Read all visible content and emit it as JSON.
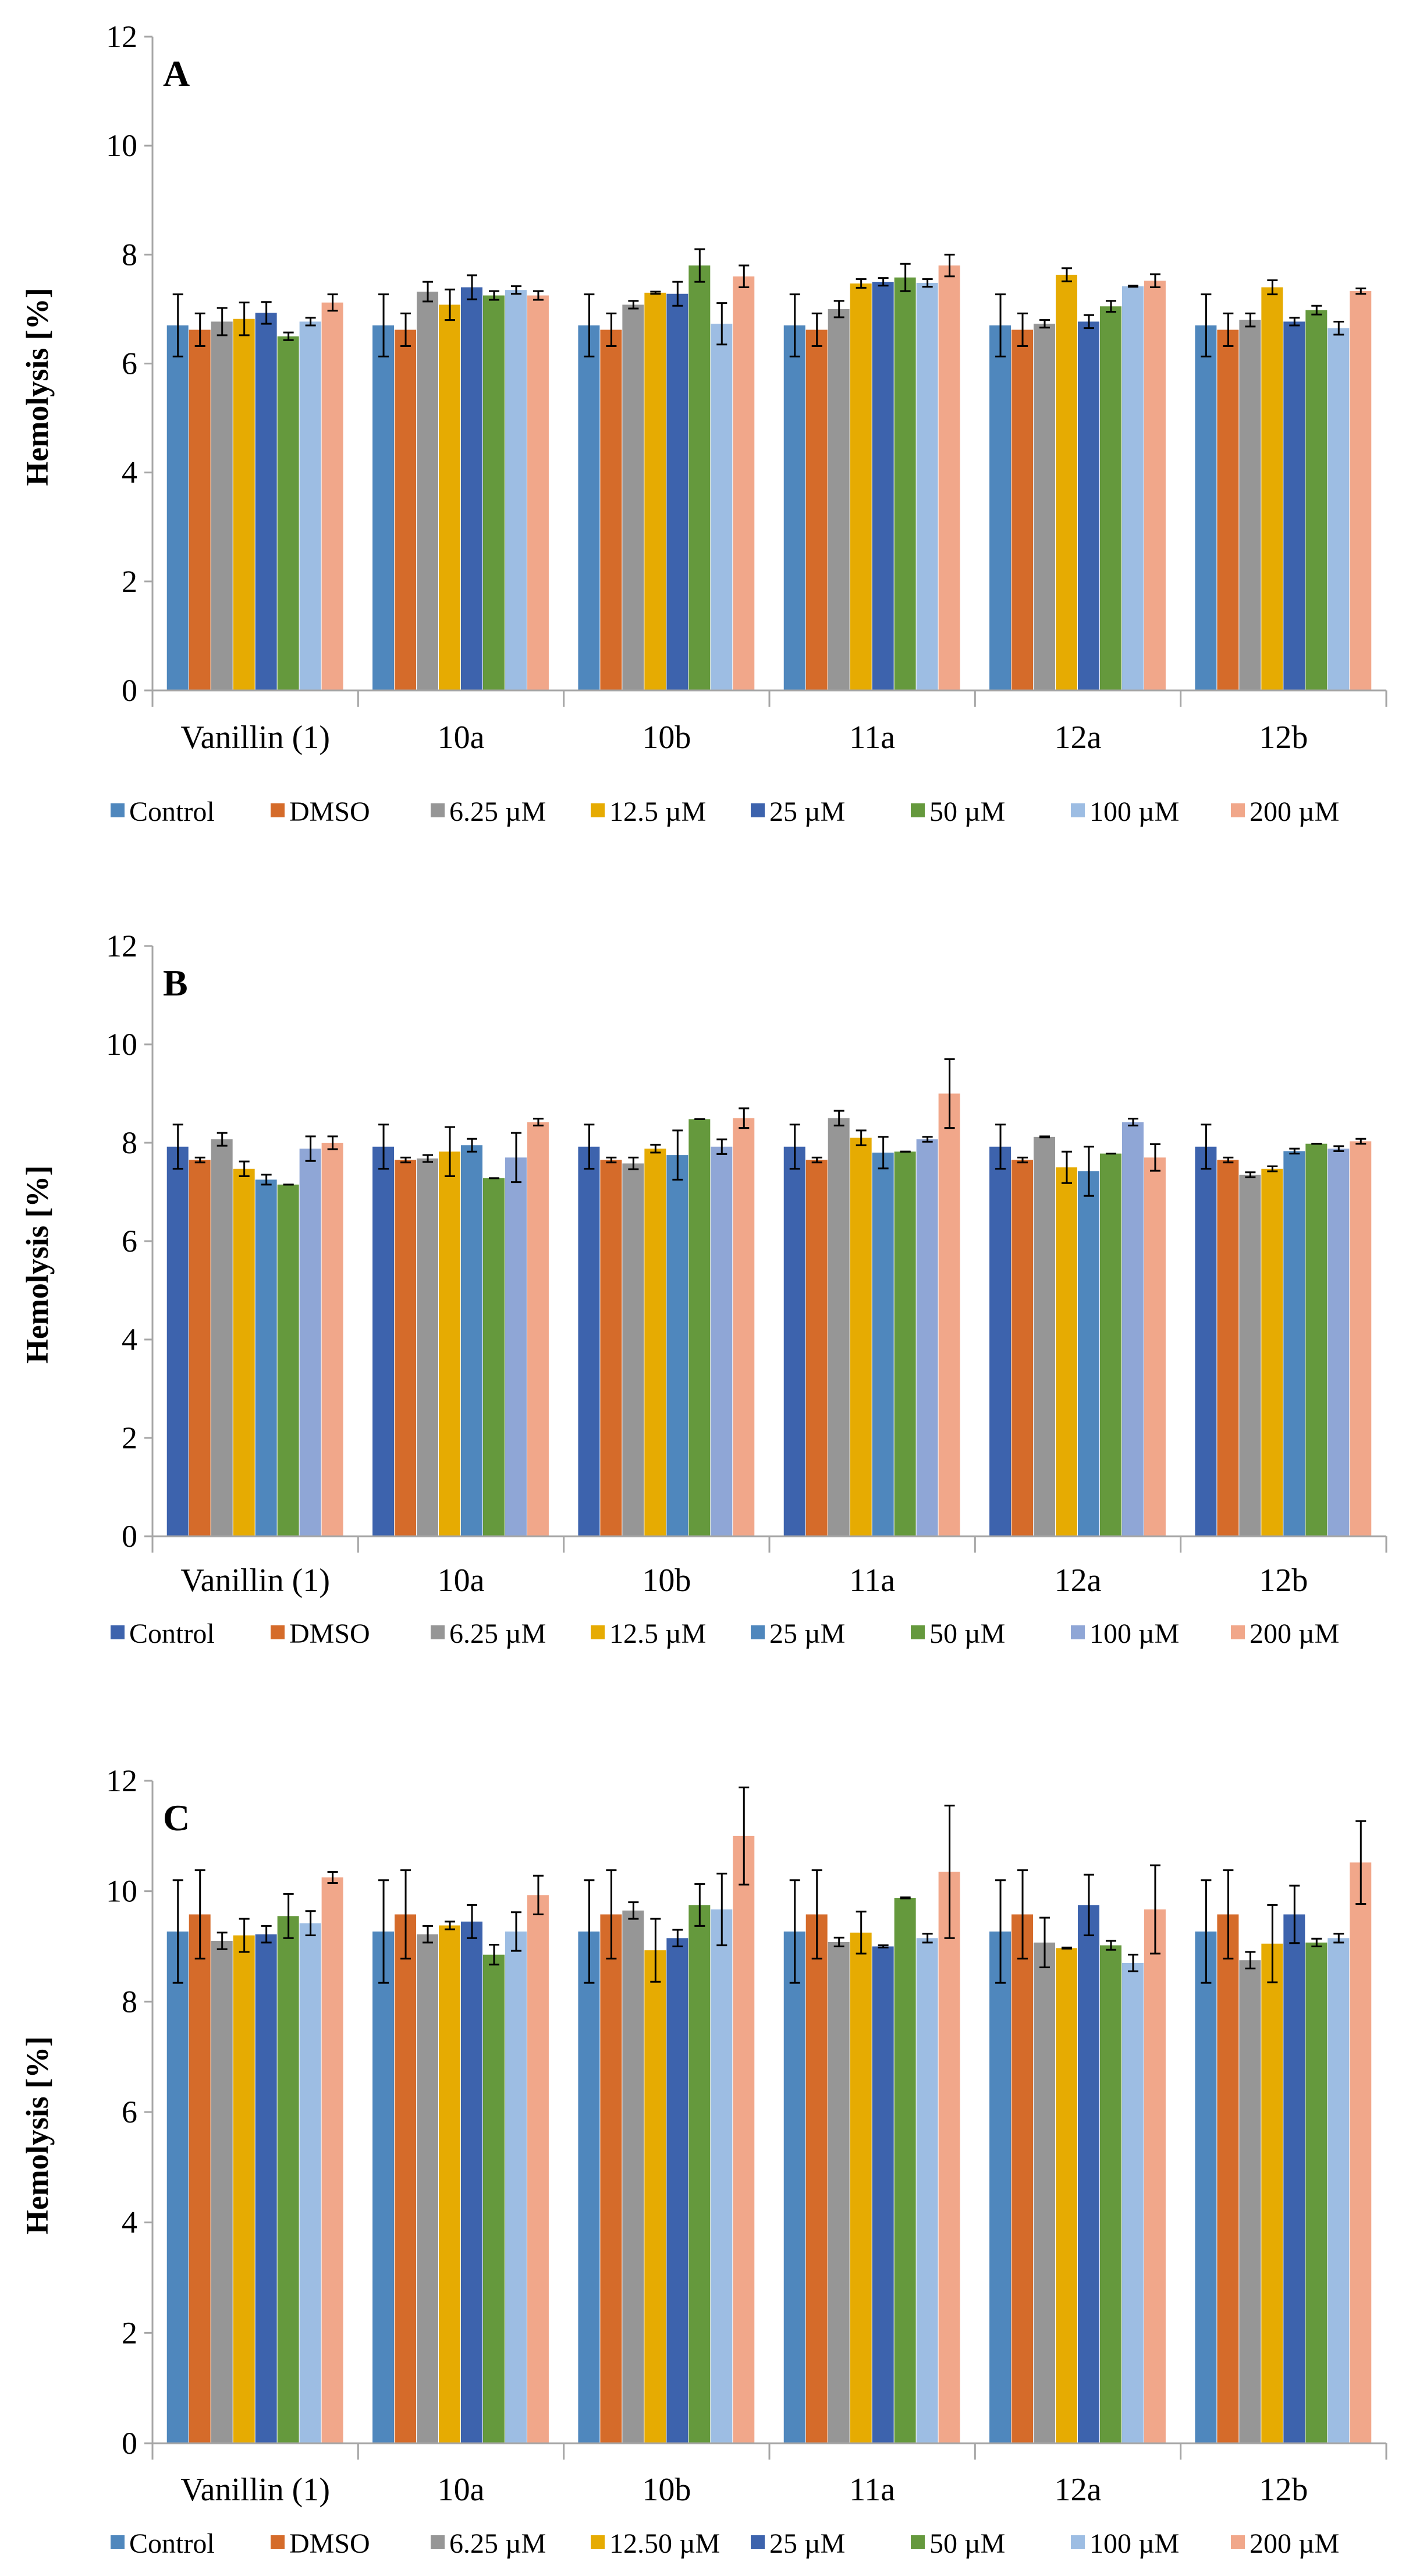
{
  "chart_data": [
    {
      "type": "bar",
      "panel_label": "A",
      "ylabel": "Hemolysis [%]",
      "ylim": [
        0,
        12
      ],
      "yticks": [
        "0",
        "2",
        "4",
        "6",
        "8",
        "10",
        "12"
      ],
      "categories": [
        "Vanillin (1)",
        "10a",
        "10b",
        "11a",
        "12a",
        "12b"
      ],
      "legend_position": "bottom",
      "series": [
        {
          "name": "Control",
          "color": "#4f87bd",
          "values": [
            6.7,
            6.7,
            6.7,
            6.7,
            6.7,
            6.7
          ],
          "errors": [
            0.57,
            0.57,
            0.57,
            0.57,
            0.57,
            0.57
          ]
        },
        {
          "name": "DMSO",
          "color": "#d56b2a",
          "values": [
            6.62,
            6.62,
            6.62,
            6.62,
            6.62,
            6.62
          ],
          "errors": [
            0.3,
            0.3,
            0.3,
            0.3,
            0.3,
            0.3
          ]
        },
        {
          "name": "6.25 µM",
          "color": "#969696",
          "values": [
            6.77,
            7.32,
            7.08,
            7.0,
            6.73,
            6.8
          ],
          "errors": [
            0.25,
            0.18,
            0.07,
            0.15,
            0.07,
            0.12
          ]
        },
        {
          "name": "12.5 µM",
          "color": "#e6ab02",
          "values": [
            6.82,
            7.08,
            7.3,
            7.47,
            7.63,
            7.4
          ],
          "errors": [
            0.3,
            0.28,
            0.02,
            0.08,
            0.12,
            0.13
          ]
        },
        {
          "name": "25 µM",
          "color": "#3d63ad",
          "values": [
            6.93,
            7.4,
            7.28,
            7.5,
            6.77,
            6.77
          ],
          "errors": [
            0.2,
            0.22,
            0.22,
            0.07,
            0.12,
            0.07
          ]
        },
        {
          "name": "50 µM",
          "color": "#65993d",
          "values": [
            6.5,
            7.25,
            7.8,
            7.58,
            7.05,
            6.98
          ],
          "errors": [
            0.07,
            0.08,
            0.3,
            0.25,
            0.1,
            0.08
          ]
        },
        {
          "name": "100 µM",
          "color": "#9dbde3",
          "values": [
            6.77,
            7.35,
            6.73,
            7.48,
            7.42,
            6.65
          ],
          "errors": [
            0.07,
            0.07,
            0.38,
            0.07,
            0.01,
            0.12
          ]
        },
        {
          "name": "200 µM",
          "color": "#f1a78a",
          "values": [
            7.12,
            7.25,
            7.6,
            7.8,
            7.52,
            7.33
          ],
          "errors": [
            0.15,
            0.08,
            0.2,
            0.2,
            0.12,
            0.05
          ]
        }
      ]
    },
    {
      "type": "bar",
      "panel_label": "B",
      "ylabel": "Hemolysis [%]",
      "ylim": [
        0,
        12
      ],
      "yticks": [
        "0",
        "2",
        "4",
        "6",
        "8",
        "10",
        "12"
      ],
      "categories": [
        "Vanillin (1)",
        "10a",
        "10b",
        "11a",
        "12a",
        "12b"
      ],
      "legend_position": "bottom",
      "series": [
        {
          "name": "Control",
          "color": "#3d63ad",
          "values": [
            7.92,
            7.92,
            7.92,
            7.92,
            7.92,
            7.92
          ],
          "errors": [
            0.45,
            0.45,
            0.45,
            0.45,
            0.45,
            0.45
          ]
        },
        {
          "name": "DMSO",
          "color": "#d56b2a",
          "values": [
            7.65,
            7.65,
            7.65,
            7.65,
            7.65,
            7.65
          ],
          "errors": [
            0.05,
            0.05,
            0.05,
            0.05,
            0.05,
            0.05
          ]
        },
        {
          "name": "6.25 µM",
          "color": "#969696",
          "values": [
            8.07,
            7.68,
            7.58,
            8.5,
            8.12,
            7.35
          ],
          "errors": [
            0.13,
            0.07,
            0.12,
            0.15,
            0.01,
            0.05
          ]
        },
        {
          "name": "12.5 µM",
          "color": "#e6ab02",
          "values": [
            7.47,
            7.82,
            7.88,
            8.1,
            7.5,
            7.47
          ],
          "errors": [
            0.15,
            0.5,
            0.08,
            0.15,
            0.32,
            0.05
          ]
        },
        {
          "name": "25 µM",
          "color": "#4f87bd",
          "values": [
            7.25,
            7.95,
            7.75,
            7.8,
            7.42,
            7.83
          ],
          "errors": [
            0.1,
            0.13,
            0.5,
            0.32,
            0.5,
            0.05
          ]
        },
        {
          "name": "50 µM",
          "color": "#65993d",
          "values": [
            7.15,
            7.28,
            8.48,
            7.82,
            7.78,
            7.98
          ],
          "errors": [
            0,
            0,
            0,
            0,
            0,
            0
          ]
        },
        {
          "name": "100 µM",
          "color": "#8fa6d6",
          "values": [
            7.88,
            7.7,
            7.92,
            8.07,
            8.42,
            7.88
          ],
          "errors": [
            0.25,
            0.5,
            0.15,
            0.05,
            0.07,
            0.05
          ]
        },
        {
          "name": "200 µM",
          "color": "#f1a78a",
          "values": [
            8.0,
            8.42,
            8.5,
            9.0,
            7.7,
            8.03
          ],
          "errors": [
            0.13,
            0.07,
            0.2,
            0.7,
            0.27,
            0.05
          ]
        }
      ]
    },
    {
      "type": "bar",
      "panel_label": "C",
      "ylabel": "Hemolysis [%]",
      "ylim": [
        0,
        12
      ],
      "yticks": [
        "0",
        "2",
        "4",
        "6",
        "8",
        "10",
        "12"
      ],
      "categories": [
        "Vanillin (1)",
        "10a",
        "10b",
        "11a",
        "12a",
        "12b"
      ],
      "legend_position": "bottom",
      "series": [
        {
          "name": "Control",
          "color": "#4f87bd",
          "values": [
            9.27,
            9.27,
            9.27,
            9.27,
            9.27,
            9.27
          ],
          "errors": [
            0.93,
            0.93,
            0.93,
            0.93,
            0.93,
            0.93
          ]
        },
        {
          "name": "DMSO",
          "color": "#d56b2a",
          "values": [
            9.58,
            9.58,
            9.58,
            9.58,
            9.58,
            9.58
          ],
          "errors": [
            0.8,
            0.8,
            0.8,
            0.8,
            0.8,
            0.8
          ]
        },
        {
          "name": "6.25 µM",
          "color": "#969696",
          "values": [
            9.1,
            9.22,
            9.65,
            9.08,
            9.07,
            8.75
          ],
          "errors": [
            0.15,
            0.15,
            0.15,
            0.08,
            0.45,
            0.15
          ]
        },
        {
          "name": "12.50 µM",
          "color": "#e6ab02",
          "values": [
            9.2,
            9.38,
            8.93,
            9.25,
            8.97,
            9.05
          ],
          "errors": [
            0.3,
            0.07,
            0.57,
            0.38,
            0.01,
            0.7
          ]
        },
        {
          "name": "25 µM",
          "color": "#3d63ad",
          "values": [
            9.22,
            9.45,
            9.15,
            9.0,
            9.75,
            9.58
          ],
          "errors": [
            0.15,
            0.3,
            0.15,
            0.02,
            0.55,
            0.52
          ]
        },
        {
          "name": "50 µM",
          "color": "#65993d",
          "values": [
            9.55,
            8.85,
            9.75,
            9.88,
            9.02,
            9.07
          ],
          "errors": [
            0.4,
            0.18,
            0.38,
            0.01,
            0.08,
            0.07
          ]
        },
        {
          "name": "100 µM",
          "color": "#9dbde3",
          "values": [
            9.42,
            9.27,
            9.67,
            9.15,
            8.7,
            9.15
          ],
          "errors": [
            0.22,
            0.35,
            0.65,
            0.08,
            0.15,
            0.08
          ]
        },
        {
          "name": "200 µM",
          "color": "#f1a78a",
          "values": [
            10.25,
            9.93,
            11.0,
            10.35,
            9.67,
            10.52
          ],
          "errors": [
            0.1,
            0.35,
            0.88,
            1.2,
            0.8,
            0.75
          ]
        }
      ]
    }
  ]
}
